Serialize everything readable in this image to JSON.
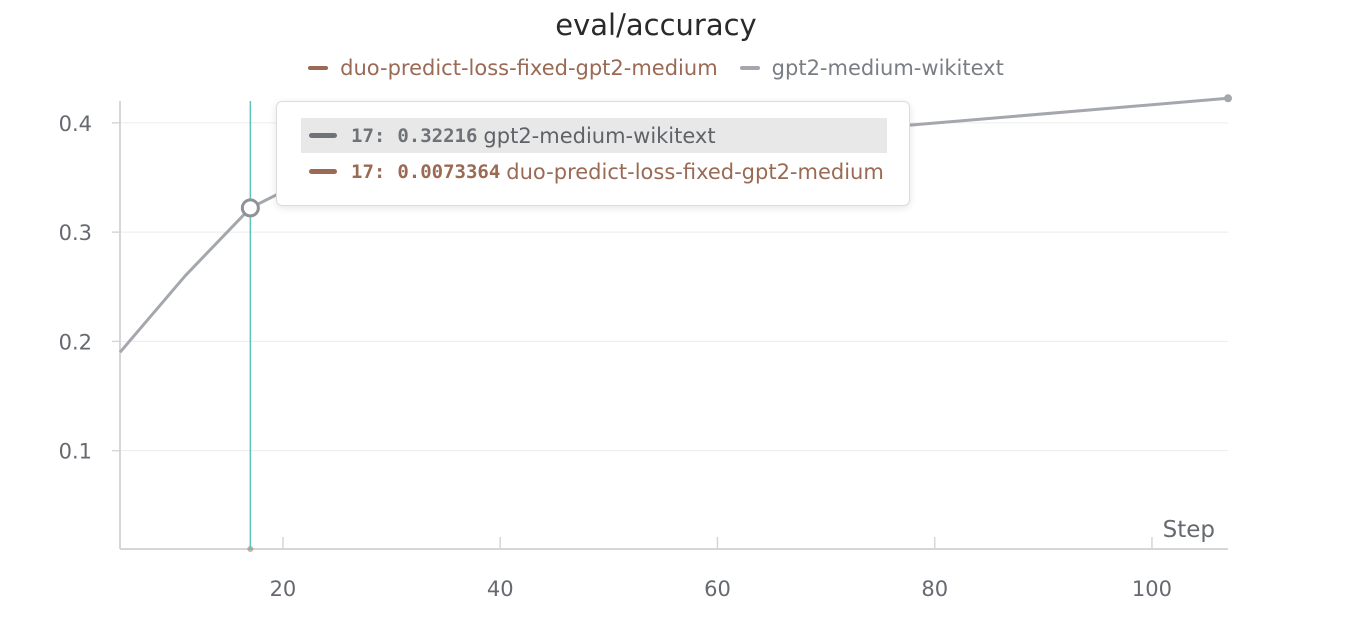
{
  "colors": {
    "gpt2": "#a4a8ae",
    "gpt2_dark": "#6f7378",
    "duo": "#9a6a55",
    "cursor": "#5ec4b8",
    "grid": "#ececec",
    "axis": "#d6d6d6"
  },
  "chart_data": {
    "type": "line",
    "title": "eval/accuracy",
    "xlabel": "Step",
    "ylabel": "",
    "xlim": [
      5,
      107
    ],
    "ylim": [
      0.01,
      0.42
    ],
    "xticks": [
      20,
      40,
      60,
      80,
      100
    ],
    "yticks": [
      0.1,
      0.2,
      0.3,
      0.4
    ],
    "legend_position": "top",
    "grid": true,
    "series": [
      {
        "name": "duo-predict-loss-fixed-gpt2-medium",
        "color": "#9a6a55",
        "x": [
          17
        ],
        "y": [
          0.0073364
        ]
      },
      {
        "name": "gpt2-medium-wikitext",
        "color": "#a4a8ae",
        "x": [
          5,
          11,
          17,
          23,
          107
        ],
        "y": [
          0.19,
          0.26,
          0.32216,
          0.352,
          0.4225
        ]
      }
    ],
    "cursor_step": 17,
    "tooltip": {
      "rows": [
        {
          "step": "17",
          "sep": ":",
          "value": "0.32216",
          "name": "gpt2-medium-wikitext",
          "highlighted": true
        },
        {
          "step": "17",
          "sep": ":",
          "value": "0.0073364",
          "name": "duo-predict-loss-fixed-gpt2-medium",
          "highlighted": false
        }
      ]
    }
  }
}
